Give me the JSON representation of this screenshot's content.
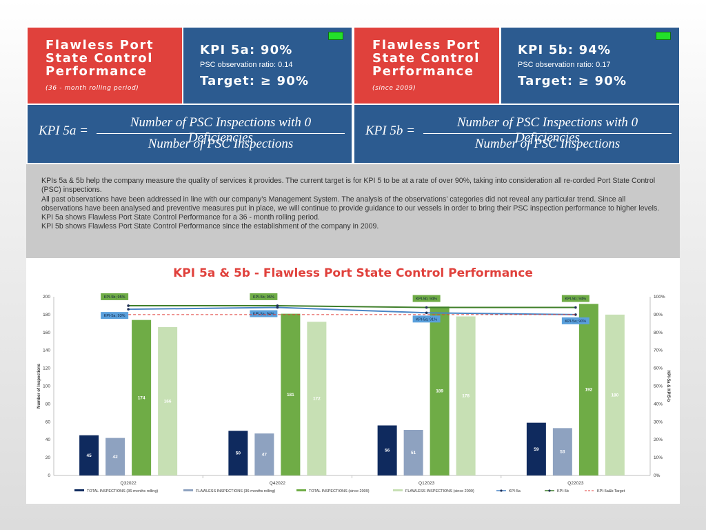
{
  "panel_a": {
    "title": "Flawless Port State Control Performance",
    "subtitle": "(36 - month rolling period)",
    "kpi_heading": "KPI 5a: 90%",
    "ratio": "PSC observation ratio: 0.14",
    "target": "Target: ≥ 90%",
    "status_color": "#23e02a"
  },
  "panel_b": {
    "title": "Flawless Port State Control Performance",
    "subtitle": "(since 2009)",
    "kpi_heading": "KPI 5b: 94%",
    "ratio": "PSC observation ratio: 0.17",
    "target": "Target: ≥ 90%",
    "status_color": "#23e02a"
  },
  "formula_a": {
    "lhs": "KPI 5a =",
    "numerator": "Number of PSC Inspections with 0 Deficiencies",
    "denominator": "Number of PSC Inspections"
  },
  "formula_b": {
    "lhs": "KPI 5b =",
    "numerator": "Number of PSC Inspections with 0 Deficiencies",
    "denominator": "Number of PSC Inspections"
  },
  "description": {
    "p1": "KPIs 5a & 5b help the company measure the quality of services it provides. The current target is for KPI 5 to be at a rate of over 90%, taking into consideration all re-corded Port State Control (PSC) inspections.",
    "p2": "All past observations have been addressed in line with our company’s Management System. The analysis of the observations’ categories did not reveal any particular trend. Since all observations have been analysed and preventive measures put in place, we will continue to provide guidance to our vessels in order to bring their PSC inspection performance to higher levels.",
    "p3": "KPI 5a shows Flawless Port State Control Performance for a 36 - month rolling period.",
    "p4": "KPI 5b shows Flawless Port State Control Performance since the establishment of the company in 2009."
  },
  "colors": {
    "accent_red": "#e0413c",
    "panel_blue": "#2c5b90",
    "description_grey": "#c9c9c9"
  },
  "chart_data": {
    "type": "bar",
    "title": "KPI 5a & 5b - Flawless Port State Control Performance",
    "xlabel": "",
    "ylabel": "Number of Inspections",
    "y2label": "KPI-5a & KPI5-b",
    "ylim": [
      0,
      200
    ],
    "yticks": [
      0,
      20,
      40,
      60,
      80,
      100,
      120,
      140,
      160,
      180,
      200
    ],
    "y2lim": [
      0,
      100
    ],
    "y2ticks": [
      "0%",
      "10%",
      "20%",
      "30%",
      "40%",
      "50%",
      "60%",
      "70%",
      "80%",
      "90%",
      "100%"
    ],
    "categories": [
      "Q32022",
      "Q42022",
      "Q12023",
      "Q22023"
    ],
    "grid": false,
    "legend_position": "bottom",
    "series": [
      {
        "name": "TOTAL INSPECTIONS (36-months rolling)",
        "kind": "bar",
        "color": "#0f2a5e",
        "values": [
          45,
          50,
          56,
          59
        ],
        "labels": [
          "45",
          "50",
          "56",
          "59"
        ]
      },
      {
        "name": "FLAWLESS INSPECTIONS (36-months rolling)",
        "kind": "bar",
        "color": "#8ea2c0",
        "values": [
          42,
          47,
          51,
          53
        ],
        "labels": [
          "42",
          "47",
          "51",
          "53"
        ]
      },
      {
        "name": "TOTAL INSPECTIONS (since 2009)",
        "kind": "bar",
        "color": "#6fac46",
        "values": [
          174,
          181,
          189,
          192
        ],
        "labels": [
          "174",
          "181",
          "189",
          "192"
        ]
      },
      {
        "name": "FLAWLESS INSPECTIONS (since 2009)",
        "kind": "bar",
        "color": "#c7e0b4",
        "values": [
          166,
          172,
          178,
          180
        ],
        "labels": [
          "166",
          "172",
          "178",
          "180"
        ]
      },
      {
        "name": "KPI-5a",
        "kind": "line",
        "axis": "right",
        "color": "#4a85c5",
        "values": [
          93,
          94,
          91,
          90
        ],
        "labels": [
          "KPI-5a; 93%",
          "KPI-5a; 94%",
          "KPI-5a; 91%",
          "KPI-5a; 90%"
        ]
      },
      {
        "name": "KPI-5b",
        "kind": "line",
        "axis": "right",
        "color": "#3f7f2a",
        "values": [
          95,
          95,
          94,
          94
        ],
        "labels": [
          "KPI-5b; 95%",
          "KPI-5b; 95%",
          "KPI-5b; 94%",
          "KPI-5b; 94%"
        ]
      },
      {
        "name": "KPI-5a&b Target",
        "kind": "line",
        "axis": "right",
        "dashed": true,
        "color": "#e0413c",
        "values": [
          90,
          90,
          90,
          90
        ]
      }
    ]
  }
}
